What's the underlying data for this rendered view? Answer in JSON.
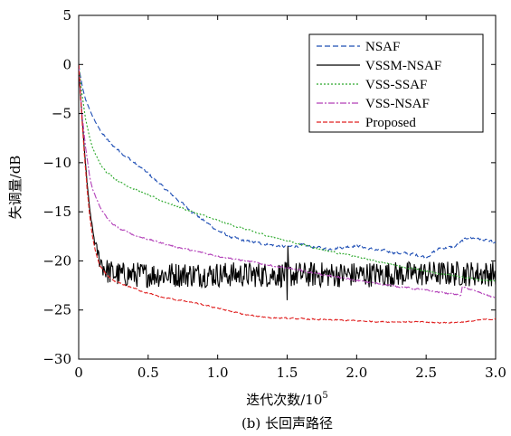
{
  "chart_data": {
    "type": "line",
    "title": "",
    "caption": "(b) 长回声路径",
    "xlabel": "迭代次数/10",
    "xlabel_sup": "5",
    "ylabel": "失调量/dB",
    "xlim": [
      0,
      3.0
    ],
    "ylim": [
      -30,
      5
    ],
    "xticks": [
      0,
      0.5,
      1.0,
      1.5,
      2.0,
      2.5,
      3.0
    ],
    "xtick_labels": [
      "0",
      "0.5",
      "1.0",
      "1.5",
      "2.0",
      "2.5",
      "3.0"
    ],
    "yticks": [
      5,
      0,
      -5,
      -10,
      -15,
      -20,
      -25,
      -30
    ],
    "ytick_labels": [
      "5",
      "0",
      "−5",
      "−10",
      "−15",
      "−20",
      "−25",
      "−30"
    ],
    "grid": false,
    "legend": {
      "position": "top-right"
    },
    "series": [
      {
        "name": "NSAF",
        "color": "#1f4fb5",
        "dash": "6,3",
        "noise": 0.25,
        "x": [
          0,
          0.01,
          0.03,
          0.05,
          0.1,
          0.15,
          0.2,
          0.25,
          0.3,
          0.4,
          0.5,
          0.6,
          0.7,
          0.8,
          0.9,
          1.0,
          1.1,
          1.2,
          1.3,
          1.4,
          1.5,
          1.6,
          1.7,
          1.8,
          1.9,
          2.0,
          2.1,
          2.2,
          2.3,
          2.4,
          2.5,
          2.6,
          2.7,
          2.8,
          2.9,
          3.0
        ],
        "y": [
          0,
          -1.0,
          -2.5,
          -3.6,
          -5.3,
          -6.6,
          -7.6,
          -8.3,
          -8.9,
          -10.0,
          -11.1,
          -12.4,
          -13.6,
          -14.8,
          -15.9,
          -16.9,
          -17.6,
          -18.0,
          -18.2,
          -18.4,
          -18.6,
          -18.4,
          -18.6,
          -18.8,
          -18.6,
          -18.4,
          -18.8,
          -19.0,
          -19.2,
          -19.3,
          -19.6,
          -18.7,
          -18.6,
          -17.6,
          -17.8,
          -18.2
        ]
      },
      {
        "name": "VSSM-NSAF",
        "color": "#000000",
        "dash": "",
        "noise": 1.3,
        "x": [
          0,
          0.02,
          0.04,
          0.06,
          0.08,
          0.1,
          0.12,
          0.15,
          0.18,
          0.2,
          0.25,
          0.3,
          0.5,
          1.0,
          1.5,
          2.0,
          2.5,
          3.0
        ],
        "y": [
          0,
          -4.5,
          -8.5,
          -12.0,
          -14.8,
          -16.8,
          -18.4,
          -19.8,
          -20.6,
          -21.0,
          -21.3,
          -21.4,
          -21.4,
          -21.4,
          -21.4,
          -21.4,
          -21.3,
          -21.3
        ]
      },
      {
        "name": "VSS-SSAF",
        "color": "#2aa82a",
        "dash": "2,2",
        "noise": 0.15,
        "x": [
          0,
          0.02,
          0.05,
          0.08,
          0.1,
          0.15,
          0.2,
          0.25,
          0.3,
          0.4,
          0.5,
          0.6,
          0.8,
          1.0,
          1.2,
          1.4,
          1.6,
          1.8,
          2.0,
          2.2,
          2.4,
          2.6,
          2.8,
          3.0
        ],
        "y": [
          0,
          -2.6,
          -5.6,
          -7.5,
          -8.5,
          -10.0,
          -10.9,
          -11.5,
          -12.0,
          -12.7,
          -13.3,
          -13.9,
          -14.9,
          -15.9,
          -16.8,
          -17.6,
          -18.3,
          -19.0,
          -19.6,
          -20.2,
          -20.8,
          -21.3,
          -21.7,
          -22.1
        ]
      },
      {
        "name": "VSS-NSAF",
        "color": "#b23fb8",
        "dash": "7,2,2,2",
        "noise": 0.15,
        "x": [
          0,
          0.02,
          0.05,
          0.08,
          0.1,
          0.15,
          0.2,
          0.25,
          0.3,
          0.35,
          0.4,
          0.5,
          0.6,
          0.8,
          1.0,
          1.2,
          1.4,
          1.6,
          1.8,
          2.0,
          2.2,
          2.4,
          2.6,
          2.7,
          2.75,
          2.76,
          2.8,
          3.0
        ],
        "y": [
          0,
          -4.5,
          -8.5,
          -11.5,
          -12.7,
          -14.4,
          -15.6,
          -16.3,
          -16.8,
          -17.0,
          -17.4,
          -17.8,
          -18.2,
          -18.9,
          -19.5,
          -20.0,
          -20.5,
          -21.0,
          -21.5,
          -22.0,
          -22.4,
          -22.8,
          -23.2,
          -23.4,
          -23.5,
          -22.7,
          -22.8,
          -23.8
        ]
      },
      {
        "name": "Proposed",
        "color": "#e02020",
        "dash": "5,2",
        "noise": 0.12,
        "x": [
          0,
          0.02,
          0.04,
          0.06,
          0.08,
          0.1,
          0.12,
          0.15,
          0.2,
          0.25,
          0.3,
          0.4,
          0.5,
          0.6,
          0.8,
          1.0,
          1.2,
          1.4,
          1.6,
          1.8,
          2.0,
          2.2,
          2.4,
          2.6,
          2.8,
          2.9,
          3.0
        ],
        "y": [
          0,
          -4.8,
          -9.0,
          -12.6,
          -15.5,
          -17.6,
          -19.0,
          -20.4,
          -21.5,
          -22.0,
          -22.3,
          -22.8,
          -23.3,
          -23.7,
          -24.2,
          -24.8,
          -25.5,
          -25.8,
          -25.9,
          -26.0,
          -26.1,
          -26.2,
          -26.2,
          -26.3,
          -26.2,
          -26.0,
          -25.9
        ]
      }
    ]
  }
}
